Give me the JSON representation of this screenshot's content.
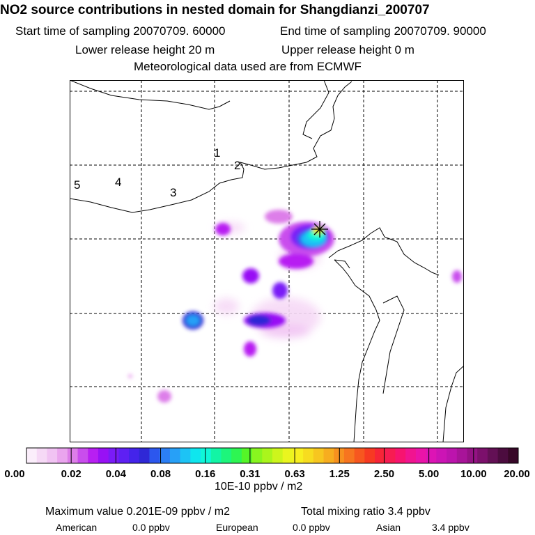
{
  "title": "NO2 source contributions in nested domain for Shangdianzi_200707",
  "start_time": "Start time of sampling 20070709. 60000",
  "end_time": "End time of sampling 20070709. 90000",
  "lower_height": "Lower release height   20 m",
  "upper_height": "Upper release height    0 m",
  "met_data": "Meteorological data used are from ECMWF",
  "region_labels": [
    "1",
    "2",
    "3",
    "4",
    "5"
  ],
  "colorbar": {
    "ticks": [
      "0.00",
      "0.02",
      "0.04",
      "0.08",
      "0.16",
      "0.31",
      "0.63",
      "1.25",
      "2.50",
      "5.00",
      "10.00",
      "20.00"
    ],
    "colors": [
      "#fbeefb",
      "#f6d9f6",
      "#f1c3f3",
      "#eaa5ee",
      "#dd7ee9",
      "#c94ded",
      "#b81ff2",
      "#9811f5",
      "#7a1bf7",
      "#5e20f3",
      "#4424ea",
      "#2f28d6",
      "#2c57ee",
      "#2c7ff5",
      "#27a0f7",
      "#1dc3f5",
      "#0fe6ee",
      "#0ff7d8",
      "#12f5a5",
      "#1df57b",
      "#2ef552",
      "#55f528",
      "#88f51f",
      "#aaf51c",
      "#cdf51c",
      "#eaf51f",
      "#f7ef20",
      "#f7dc1f",
      "#f7c61f",
      "#f7ad1f",
      "#f7911f",
      "#f7751f",
      "#f7571f",
      "#f73a22",
      "#f72538",
      "#f71c52",
      "#f71470",
      "#f11490",
      "#ea14a8",
      "#dd14b5",
      "#cc14b5",
      "#bc14ad",
      "#a81499",
      "#941284",
      "#7c106c",
      "#631055",
      "#4c0c3f",
      "#380828"
    ],
    "unit": "10E-10 ppbv / m2"
  },
  "summary": {
    "max_value": "Maximum value  0.201E-09 ppbv / m2",
    "total_mixing": "Total mixing ratio      3.4 ppbv"
  },
  "breakdown": {
    "american_label": "American",
    "american_value": "0.0 ppbv",
    "european_label": "European",
    "european_value": "0.0 ppbv",
    "asian_label": "Asian",
    "asian_value": "3.4 ppbv"
  }
}
